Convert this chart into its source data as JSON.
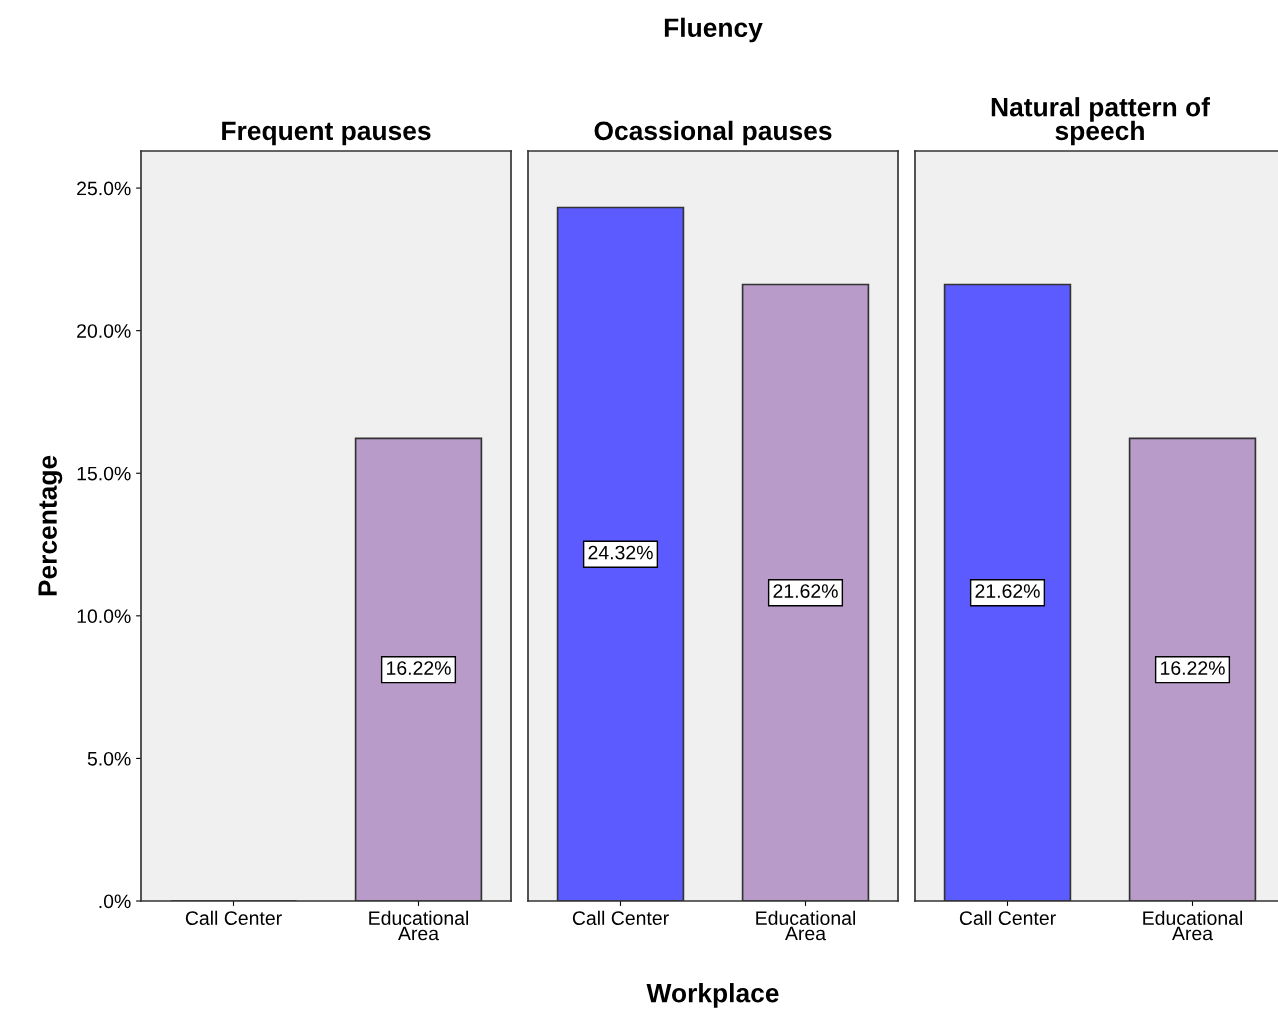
{
  "chart_data": [
    {
      "type": "bar",
      "title": "Frequent pauses",
      "ylabel": "Percentage",
      "categories": [
        "Call Center",
        "Educational\nArea"
      ],
      "values": [
        0,
        16.22
      ],
      "colors": [
        "#5b5bff",
        "#b89bc8"
      ],
      "value_labels": [
        null,
        "16.22%"
      ],
      "ylim": [
        0,
        26.3
      ],
      "yticks": [
        {
          "value": 0,
          "label": ".0%"
        },
        {
          "value": 5,
          "label": "5.0%"
        },
        {
          "value": 10,
          "label": "10.0%"
        },
        {
          "value": 15,
          "label": "15.0%"
        },
        {
          "value": 20,
          "label": "20.0%"
        },
        {
          "value": 25,
          "label": "25.0%"
        }
      ],
      "grid": false
    },
    {
      "type": "bar",
      "title": "Ocassional pauses",
      "annotations": [
        "Fluency"
      ],
      "xlabel": "Workplace",
      "categories": [
        "Call Center",
        "Educational\nArea"
      ],
      "values": [
        24.32,
        21.62
      ],
      "colors": [
        "#5b5bff",
        "#b89bc8"
      ],
      "value_labels": [
        "24.32%",
        "21.62%"
      ],
      "ylim": [
        0,
        26.3
      ],
      "tick_labels": "x",
      "grid": false
    },
    {
      "type": "bar",
      "title": "Natural pattern of\nspeech",
      "categories": [
        "Call Center",
        "Educational\nArea"
      ],
      "values": [
        21.62,
        16.22
      ],
      "colors": [
        "#5b5bff",
        "#b89bc8"
      ],
      "value_labels": [
        "21.62%",
        "16.22%"
      ],
      "ylim": [
        0,
        26.3
      ],
      "tick_labels": "x",
      "grid": false
    }
  ]
}
